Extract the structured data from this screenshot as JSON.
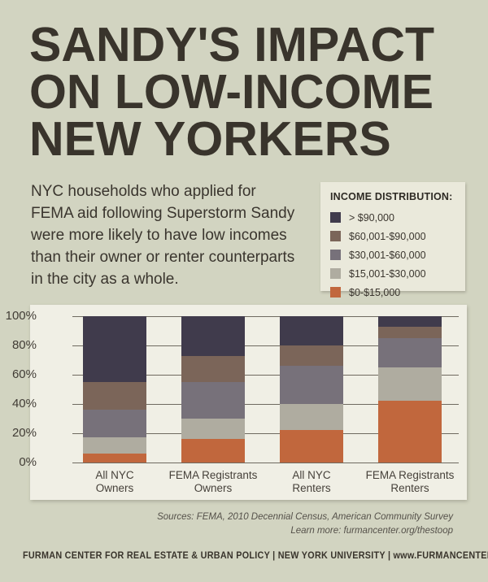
{
  "page": {
    "background": "#d2d4c1",
    "text_color": "#39342c",
    "panel_color": "#f0efe5"
  },
  "header": {
    "title_lines": [
      "SANDY'S IMPACT",
      "ON LOW-INCOME",
      "NEW YORKERS"
    ]
  },
  "intro": {
    "description_lines": [
      "NYC households who applied for",
      "FEMA aid following Superstorm Sandy",
      "were more likely to have low incomes",
      "than their owner or renter counterparts",
      "in the city as a whole."
    ]
  },
  "legend": {
    "title": "INCOME DISTRIBUTION:"
  },
  "chart_data": {
    "type": "bar",
    "stacked": true,
    "units": "percent",
    "title": "",
    "xlabel": "",
    "ylabel": "",
    "ylim": [
      0,
      100
    ],
    "yticks": [
      100,
      80,
      60,
      40,
      20,
      0
    ],
    "ytick_suffix": "%",
    "grid": true,
    "legend_position": "top-right",
    "categories": [
      "All NYC Owners",
      "FEMA Registrants Owners",
      "All NYC Renters",
      "FEMA Registrants Renters"
    ],
    "category_label_lines": [
      [
        "All NYC",
        "Owners"
      ],
      [
        "FEMA Registrants",
        "Owners"
      ],
      [
        "All NYC",
        "Renters"
      ],
      [
        "FEMA Registrants",
        "Renters"
      ]
    ],
    "series": [
      {
        "name": "> $90,000",
        "color": "#403b4c",
        "values": [
          45,
          27,
          20,
          7
        ]
      },
      {
        "name": "$60,001-$90,000",
        "color": "#7b6559",
        "values": [
          19,
          18,
          14,
          8
        ]
      },
      {
        "name": "$30,001-$60,000",
        "color": "#77717a",
        "values": [
          19,
          25,
          26,
          20
        ]
      },
      {
        "name": "$15,001-$30,000",
        "color": "#afaca0",
        "values": [
          11,
          14,
          18,
          23
        ]
      },
      {
        "name": "$0-$15,000",
        "color": "#c1673d",
        "values": [
          6,
          16,
          22,
          42
        ]
      }
    ]
  },
  "sources": {
    "line1": "Sources: FEMA, 2010 Decennial Census, American Community Survey",
    "line2": "Learn more: furmancenter.org/thestoop"
  },
  "footer": {
    "text": "FURMAN CENTER FOR REAL ESTATE & URBAN POLICY  |  NEW YORK UNIVERSITY |  www.FURMANCENTER.org"
  }
}
